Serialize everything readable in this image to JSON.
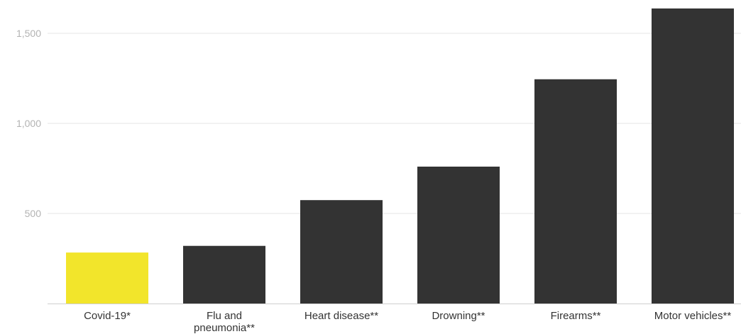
{
  "chart_data": {
    "type": "bar",
    "title": "",
    "xlabel": "",
    "ylabel": "",
    "categories": [
      [
        "Covid-19*"
      ],
      [
        "Flu and",
        "pneumonia**"
      ],
      [
        "Heart disease**"
      ],
      [
        "Drowning**"
      ],
      [
        "Firearms**"
      ],
      [
        "Motor vehicles**"
      ]
    ],
    "values": [
      283,
      320,
      574,
      760,
      1245,
      1638
    ],
    "ylim": [
      0,
      1650
    ],
    "yticks": [
      500,
      1000,
      1500
    ],
    "ytick_labels": [
      "500",
      "1,000",
      "1,500"
    ],
    "grid": true,
    "colors": {
      "highlight": "#f2e52b",
      "bar": "#333333",
      "grid": "#e6e6e6"
    },
    "highlight_index": 0
  }
}
